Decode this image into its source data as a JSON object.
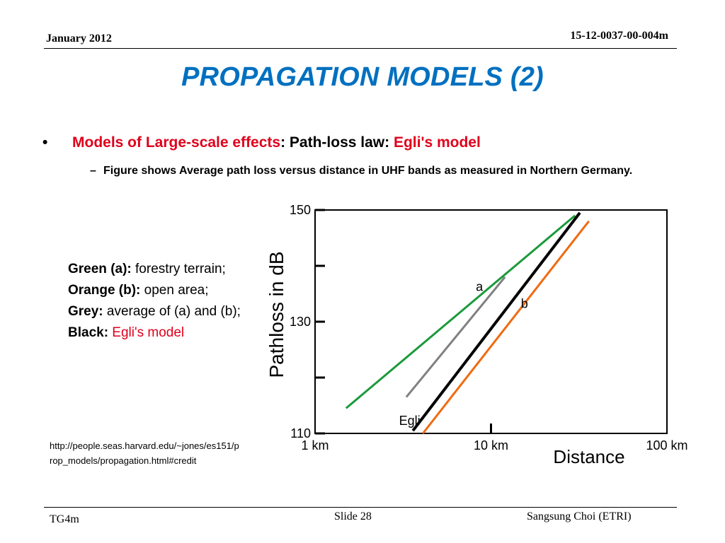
{
  "header": {
    "date": "January 2012",
    "doc_id": "15-12-0037-00-004m"
  },
  "slide": {
    "title": "PROPAGATION MODELS (2)",
    "bullet1": {
      "part1": "Models of Large-scale effects",
      "sep": ": ",
      "part2": "Path-loss law: ",
      "part3": "Egli's model"
    },
    "bullet2": "Figure shows Average path loss versus distance in UHF bands as measured in Northern Germany.",
    "legend": {
      "green_key": "Green (a):",
      "green_val": " forestry terrain;",
      "orange_key": "Orange (b):",
      "orange_val": " open area;",
      "grey_key": "Grey:",
      "grey_val": " average of (a) and (b);",
      "black_key": "Black:",
      "black_val": " Egli's model"
    },
    "credit": "http://people.seas.harvard.edu/~jones/es151/prop_models/propagation.html#credit"
  },
  "chart_data": {
    "type": "line",
    "xlabel": "Distance",
    "ylabel": "Pathloss in dB",
    "x_scale": "log",
    "xlim": [
      1,
      100
    ],
    "ylim": [
      110,
      150
    ],
    "x_ticks": [
      {
        "value": 1,
        "label": "1 km"
      },
      {
        "value": 10,
        "label": "10 km"
      },
      {
        "value": 100,
        "label": "100 km"
      }
    ],
    "y_ticks": [
      {
        "value": 110,
        "label": "110"
      },
      {
        "value": 130,
        "label": "130"
      },
      {
        "value": 150,
        "label": "150"
      }
    ],
    "y_minor_ticks": [
      120,
      140
    ],
    "series": [
      {
        "name": "a",
        "color": "#1a9a3a",
        "x": [
          1.5,
          30
        ],
        "y": [
          114.5,
          149
        ]
      },
      {
        "name": "",
        "color": "#808080",
        "x": [
          3.3,
          12
        ],
        "y": [
          116.5,
          138
        ]
      },
      {
        "name": "Egli",
        "color": "#000000",
        "x": [
          3.6,
          32
        ],
        "y": [
          110.5,
          149.5
        ]
      },
      {
        "name": "b",
        "color": "#f06a10",
        "x": [
          4.1,
          36
        ],
        "y": [
          110,
          148
        ]
      }
    ],
    "annotations": [
      {
        "text": "a",
        "x": 8.2,
        "y": 135.5
      },
      {
        "text": "b",
        "x": 14.8,
        "y": 132.5
      },
      {
        "text": "Egli",
        "x": 3.0,
        "y": 111.5
      }
    ]
  },
  "footer": {
    "left": "TG4m",
    "middle": "Slide 28",
    "right": "Sangsung Choi (ETRI)"
  }
}
